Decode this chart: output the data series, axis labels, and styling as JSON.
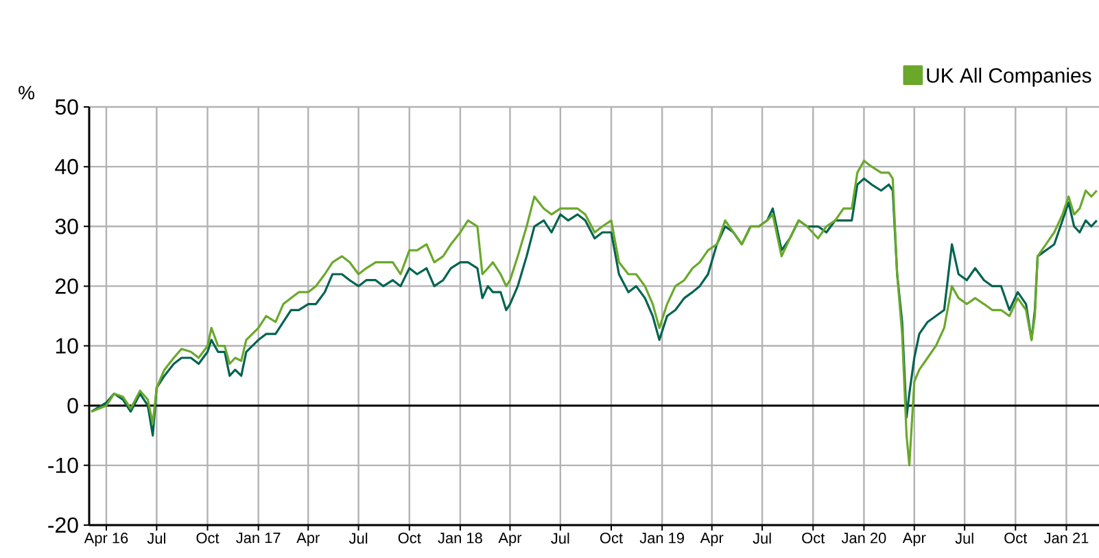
{
  "chart_data": {
    "type": "line",
    "ylabel": "%",
    "xlim": [
      "2016-03-01",
      "2021-03-01"
    ],
    "xticks": [
      {
        "value": "2016-04-01",
        "label": "Apr 16"
      },
      {
        "value": "2016-07-01",
        "label": "Jul"
      },
      {
        "value": "2016-10-01",
        "label": "Oct"
      },
      {
        "value": "2017-01-01",
        "label": "Jan 17"
      },
      {
        "value": "2017-04-01",
        "label": "Apr"
      },
      {
        "value": "2017-07-01",
        "label": "Jul"
      },
      {
        "value": "2017-10-01",
        "label": "Oct"
      },
      {
        "value": "2018-01-01",
        "label": "Jan 18"
      },
      {
        "value": "2018-04-01",
        "label": "Apr"
      },
      {
        "value": "2018-07-01",
        "label": "Jul"
      },
      {
        "value": "2018-10-01",
        "label": "Oct"
      },
      {
        "value": "2019-01-01",
        "label": "Jan 19"
      },
      {
        "value": "2019-04-01",
        "label": "Apr"
      },
      {
        "value": "2019-07-01",
        "label": "Jul"
      },
      {
        "value": "2019-10-01",
        "label": "Oct"
      },
      {
        "value": "2020-01-01",
        "label": "Jan 20"
      },
      {
        "value": "2020-04-01",
        "label": "Apr"
      },
      {
        "value": "2020-07-01",
        "label": "Jul"
      },
      {
        "value": "2020-10-01",
        "label": "Oct"
      },
      {
        "value": "2021-01-01",
        "label": "Jan 21"
      }
    ],
    "ylim": [
      -20,
      50
    ],
    "yticks": [
      -20,
      -10,
      0,
      10,
      20,
      30,
      40,
      50
    ],
    "grid": true,
    "legend": "top right",
    "marker": "none",
    "line_style": "solid",
    "ref_lines": [
      {
        "axis": "y",
        "value": 0,
        "color": "#000000"
      }
    ],
    "x": [
      "2016-03-05",
      "2016-04-01",
      "2016-04-15",
      "2016-05-01",
      "2016-05-15",
      "2016-06-01",
      "2016-06-15",
      "2016-06-24",
      "2016-07-01",
      "2016-07-15",
      "2016-08-01",
      "2016-08-15",
      "2016-09-01",
      "2016-09-15",
      "2016-10-01",
      "2016-10-08",
      "2016-10-20",
      "2016-11-01",
      "2016-11-10",
      "2016-11-20",
      "2016-12-01",
      "2016-12-10",
      "2017-01-01",
      "2017-01-15",
      "2017-02-01",
      "2017-02-15",
      "2017-03-01",
      "2017-03-15",
      "2017-04-01",
      "2017-04-15",
      "2017-05-01",
      "2017-05-15",
      "2017-06-01",
      "2017-06-15",
      "2017-07-01",
      "2017-07-15",
      "2017-08-01",
      "2017-08-15",
      "2017-09-01",
      "2017-09-15",
      "2017-10-01",
      "2017-10-15",
      "2017-11-01",
      "2017-11-15",
      "2017-12-01",
      "2017-12-15",
      "2018-01-01",
      "2018-01-15",
      "2018-02-01",
      "2018-02-10",
      "2018-02-20",
      "2018-03-01",
      "2018-03-15",
      "2018-03-25",
      "2018-04-01",
      "2018-04-15",
      "2018-05-01",
      "2018-05-15",
      "2018-06-01",
      "2018-06-15",
      "2018-07-01",
      "2018-07-15",
      "2018-08-01",
      "2018-08-15",
      "2018-09-01",
      "2018-09-15",
      "2018-10-01",
      "2018-10-15",
      "2018-11-01",
      "2018-11-15",
      "2018-12-01",
      "2018-12-15",
      "2018-12-27",
      "2019-01-10",
      "2019-01-25",
      "2019-02-10",
      "2019-02-25",
      "2019-03-10",
      "2019-03-25",
      "2019-04-10",
      "2019-04-25",
      "2019-05-10",
      "2019-05-25",
      "2019-06-10",
      "2019-06-25",
      "2019-07-10",
      "2019-07-20",
      "2019-08-05",
      "2019-08-20",
      "2019-09-05",
      "2019-09-20",
      "2019-10-10",
      "2019-10-25",
      "2019-11-10",
      "2019-11-25",
      "2019-12-10",
      "2019-12-20",
      "2020-01-01",
      "2020-01-15",
      "2020-02-01",
      "2020-02-15",
      "2020-02-22",
      "2020-03-01",
      "2020-03-10",
      "2020-03-18",
      "2020-03-23",
      "2020-04-01",
      "2020-04-10",
      "2020-04-25",
      "2020-05-10",
      "2020-05-25",
      "2020-06-08",
      "2020-06-20",
      "2020-07-05",
      "2020-07-20",
      "2020-08-05",
      "2020-08-20",
      "2020-09-05",
      "2020-09-20",
      "2020-10-05",
      "2020-10-20",
      "2020-10-30",
      "2020-11-05",
      "2020-11-10",
      "2020-11-25",
      "2020-12-10",
      "2020-12-25",
      "2021-01-05",
      "2021-01-15",
      "2021-01-25",
      "2021-02-05",
      "2021-02-15",
      "2021-02-25"
    ],
    "series": [
      {
        "color": "#00634f",
        "values": [
          -1,
          0.5,
          2,
          1,
          -1,
          2,
          0,
          -5,
          3,
          5,
          7,
          8,
          8,
          7,
          9,
          11,
          9,
          9,
          5,
          6,
          5,
          9,
          11,
          12,
          12,
          14,
          16,
          16,
          17,
          17,
          19,
          22,
          22,
          21,
          20,
          21,
          21,
          20,
          21,
          20,
          23,
          22,
          23,
          20,
          21,
          23,
          24,
          24,
          23,
          18,
          20,
          19,
          19,
          16,
          17,
          20,
          25,
          30,
          31,
          29,
          32,
          31,
          32,
          31,
          28,
          29,
          29,
          22,
          19,
          20,
          18,
          15,
          11,
          15,
          16,
          18,
          19,
          20,
          22,
          27,
          30,
          29,
          27,
          30,
          30,
          31,
          33,
          26,
          28,
          31,
          30,
          30,
          29,
          31,
          31,
          31,
          37,
          38,
          37,
          36,
          37,
          36,
          22,
          14,
          -2,
          2,
          8,
          12,
          14,
          15,
          16,
          27,
          22,
          21,
          23,
          21,
          20,
          20,
          16,
          19,
          17,
          11,
          16,
          25,
          26,
          27,
          31,
          34,
          30,
          29,
          31,
          30,
          31
        ]
      },
      {
        "name": "UK All Companies",
        "color": "#6aa82a",
        "values": [
          -1,
          0,
          2,
          1.5,
          -0.5,
          2.5,
          1,
          -3,
          3,
          6,
          8,
          9.5,
          9,
          8,
          10,
          13,
          10,
          10,
          7,
          8,
          7.5,
          11,
          13,
          15,
          14,
          17,
          18,
          19,
          19,
          20,
          22,
          24,
          25,
          24,
          22,
          23,
          24,
          24,
          24,
          22,
          26,
          26,
          27,
          24,
          25,
          27,
          29,
          31,
          30,
          22,
          23,
          24,
          22,
          20,
          21,
          25,
          30,
          35,
          33,
          32,
          33,
          33,
          33,
          32,
          29,
          30,
          31,
          24,
          22,
          22,
          20,
          17,
          13,
          17,
          20,
          21,
          23,
          24,
          26,
          27,
          31,
          29,
          27,
          30,
          30,
          31,
          32,
          25,
          28,
          31,
          30,
          28,
          30,
          31,
          33,
          33,
          39,
          41,
          40,
          39,
          39,
          38,
          22,
          12,
          -5,
          -10,
          4,
          6,
          8,
          10,
          13,
          20,
          18,
          17,
          18,
          17,
          16,
          16,
          15,
          18,
          16,
          11,
          15,
          25,
          27,
          29,
          32,
          35,
          32,
          33,
          36,
          35,
          36
        ]
      }
    ]
  }
}
